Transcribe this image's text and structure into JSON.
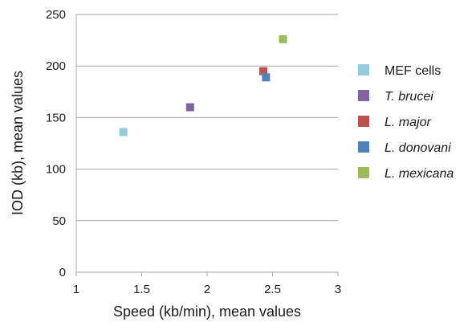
{
  "chart_data": {
    "type": "scatter",
    "title": "",
    "xlabel": "Speed (kb/min), mean values",
    "ylabel": "IOD (kb), mean values",
    "xlim": [
      1,
      3
    ],
    "ylim": [
      0,
      250
    ],
    "x_ticks": [
      "1",
      "1.5",
      "2",
      "2.5",
      "3"
    ],
    "y_ticks": [
      "0",
      "50",
      "100",
      "150",
      "200",
      "250"
    ],
    "grid": "horizontal",
    "legend_position": "right",
    "series": [
      {
        "name": "MEF cells",
        "italic": false,
        "color": "#93cddd",
        "x": [
          1.36
        ],
        "y": [
          136
        ]
      },
      {
        "name": "T. brucei",
        "italic": true,
        "color": "#8064a2",
        "x": [
          1.87
        ],
        "y": [
          160
        ]
      },
      {
        "name": "L. major",
        "italic": true,
        "color": "#c0504d",
        "x": [
          2.43
        ],
        "y": [
          195
        ]
      },
      {
        "name": "L. donovani",
        "italic": true,
        "color": "#4f81bd",
        "x": [
          2.45
        ],
        "y": [
          189
        ]
      },
      {
        "name": "L. mexicana",
        "italic": true,
        "color": "#9bbb59",
        "x": [
          2.58
        ],
        "y": [
          226
        ]
      }
    ]
  }
}
